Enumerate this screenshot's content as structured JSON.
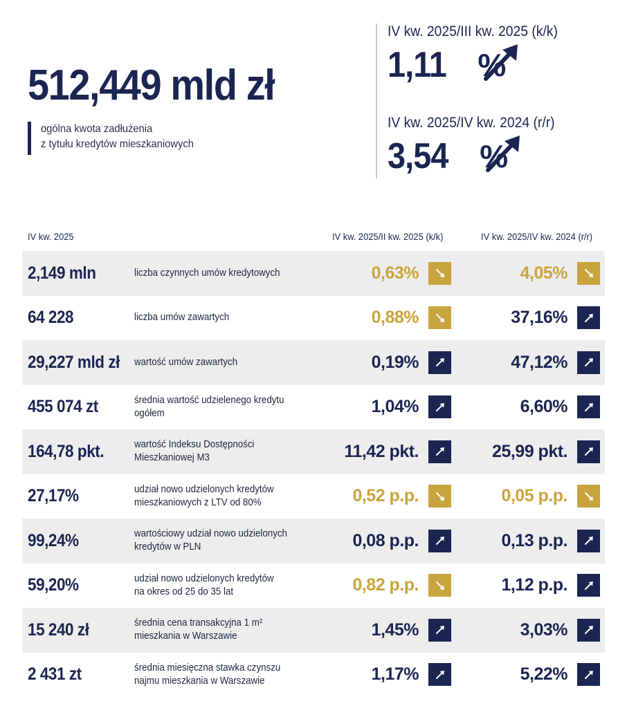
{
  "header": {
    "total_debt": "512,449 mld zł",
    "caption_lines": [
      "ogólna kwota zadłużenia",
      "z tytułu kredytów mieszkaniowych"
    ],
    "changes": [
      {
        "label": "IV kw. 2025/III kw. 2025 (k/k)",
        "value": "1,11",
        "unit": "%",
        "trend": "up"
      },
      {
        "label": "IV kw. 2025/IV kw. 2024 (r/r)",
        "value": "3,54",
        "unit": "%",
        "trend": "up"
      }
    ]
  },
  "table": {
    "headers": {
      "period": "IV kw. 2025",
      "kk": "IV kw. 2025/II kw. 2025 (k/k)",
      "rr": "IV kw. 2025/IV kw. 2024 (r/r)"
    },
    "rows": [
      {
        "value": "2,149 mln",
        "label": [
          "liczba czynnych umów kredytowych"
        ],
        "kk": {
          "value": "0,63%",
          "trend": "down"
        },
        "rr": {
          "value": "4,05%",
          "trend": "down"
        }
      },
      {
        "value": "64 228",
        "label": [
          "liczba umów zawartych"
        ],
        "kk": {
          "value": "0,88%",
          "trend": "down"
        },
        "rr": {
          "value": "37,16%",
          "trend": "up"
        }
      },
      {
        "value": "29,227 mld zł",
        "label": [
          "wartość umów zawartych"
        ],
        "kk": {
          "value": "0,19%",
          "trend": "up"
        },
        "rr": {
          "value": "47,12%",
          "trend": "up"
        }
      },
      {
        "value": "455 074 zt",
        "label": [
          "średnia wartość udzielenego kredytu",
          "ogółem"
        ],
        "kk": {
          "value": "1,04%",
          "trend": "up"
        },
        "rr": {
          "value": "6,60%",
          "trend": "up"
        }
      },
      {
        "value": "164,78 pkt.",
        "label": [
          "wartość Indeksu Dostępności",
          "Mieszkaniowej M3"
        ],
        "kk": {
          "value": "11,42 pkt.",
          "trend": "up"
        },
        "rr": {
          "value": "25,99 pkt.",
          "trend": "up"
        }
      },
      {
        "value": "27,17%",
        "label": [
          "udział nowo udzielonych kredytów",
          "mieszkaniowych z LTV od 80%"
        ],
        "kk": {
          "value": "0,52 p.p.",
          "trend": "down"
        },
        "rr": {
          "value": "0,05 p.p.",
          "trend": "down"
        }
      },
      {
        "value": "99,24%",
        "label": [
          "wartościowy udział nowo udzielonych",
          "kredytów w PLN"
        ],
        "kk": {
          "value": "0,08 p.p.",
          "trend": "up"
        },
        "rr": {
          "value": "0,13 p.p.",
          "trend": "up"
        }
      },
      {
        "value": "59,20%",
        "label": [
          "udział nowo udzielonych kredytów",
          "na okres od 25 do 35 lat"
        ],
        "kk": {
          "value": "0,82 p.p.",
          "trend": "down"
        },
        "rr": {
          "value": "1,12 p.p.",
          "trend": "up"
        }
      },
      {
        "value": "15 240 zł",
        "label": [
          "średnia cena transakcyjna 1 m²",
          "mieszkania w Warszawie"
        ],
        "kk": {
          "value": "1,45%",
          "trend": "up"
        },
        "rr": {
          "value": "3,03%",
          "trend": "up"
        }
      },
      {
        "value": "2 431 zt",
        "label": [
          "średnia miesięczna stawka czynszu",
          "najmu mieszkania w Warszawie"
        ],
        "kk": {
          "value": "1,17%",
          "trend": "up"
        },
        "rr": {
          "value": "5,22%",
          "trend": "up"
        }
      }
    ]
  },
  "icons": {
    "up": "arrow-up-right-icon",
    "down": "arrow-down-right-icon"
  },
  "colors": {
    "navy": "#1b2552",
    "gold": "#c9a43e",
    "row_shade": "#ededed"
  }
}
